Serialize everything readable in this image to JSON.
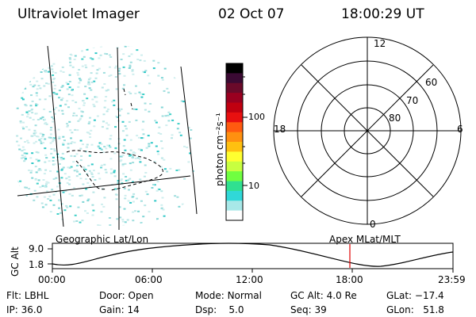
{
  "header": {
    "instrument": "Ultraviolet Imager",
    "date": "02 Oct 07",
    "time": "18:00:29 UT"
  },
  "colorbar": {
    "unit_label": "photon cm⁻²s⁻¹",
    "ticks": [
      "100",
      "10"
    ],
    "colors": [
      "#000000",
      "#3a0a33",
      "#6a0a2a",
      "#9a0020",
      "#c00010",
      "#e81010",
      "#ff5a10",
      "#ff9010",
      "#ffc010",
      "#ffff30",
      "#c8ff40",
      "#70ff40",
      "#30e090",
      "#30d8d8",
      "#a8e8e8",
      "#ffffff"
    ]
  },
  "polar": {
    "mlt_labels": [
      "12",
      "6",
      "0",
      "18"
    ],
    "lat_labels": [
      "60",
      "70",
      "80"
    ]
  },
  "timeline": {
    "left_title": "Geographic Lat/Lon",
    "right_title": "Apex MLat/MLT",
    "axis_label": "GC Alt",
    "y_ticks": [
      "9.0",
      "1.8"
    ],
    "x_ticks": [
      "00:00",
      "06:00",
      "12:00",
      "18:00",
      "23:59"
    ],
    "marker_color": "#e00000"
  },
  "status": {
    "row1": [
      {
        "label": "Flt:",
        "value": "LBHL"
      },
      {
        "label": "Door:",
        "value": "Open"
      },
      {
        "label": "Mode:",
        "value": "Normal"
      },
      {
        "label": "GC Alt:",
        "value": "4.0 Re"
      },
      {
        "label": "GLat:",
        "value": "−17.4"
      }
    ],
    "row2": [
      {
        "label": "IP:",
        "value": "36.0"
      },
      {
        "label": "Gain:",
        "value": "14"
      },
      {
        "label": "Dsp:",
        "value": "5.0"
      },
      {
        "label": "Seq:",
        "value": "39"
      },
      {
        "label": "GLon:",
        "value": "51.8"
      }
    ]
  }
}
